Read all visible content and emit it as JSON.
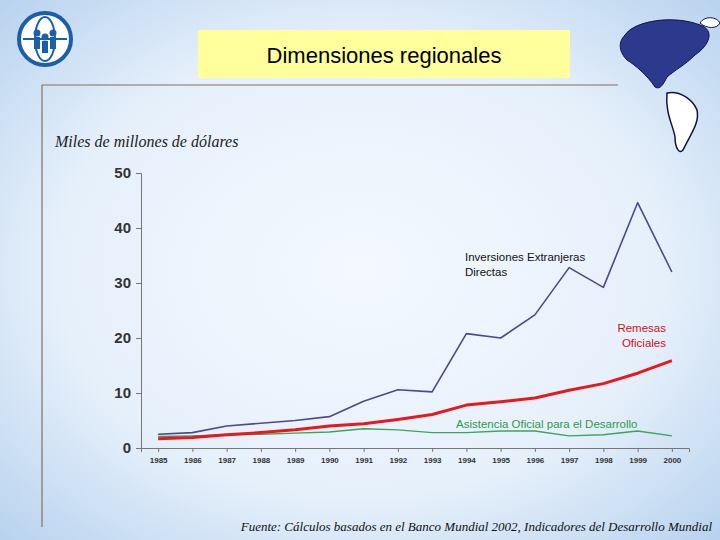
{
  "chart_data": {
    "type": "line",
    "title": "Dimensiones regionales",
    "y_label": "Miles de millones de dólares",
    "source": "Fuente: Cálculos basados en el Banco Mundial 2002, Indicadores del Desarrollo Mundial",
    "categories": [
      "1985",
      "1986",
      "1987",
      "1988",
      "1989",
      "1990",
      "1991",
      "1992",
      "1993",
      "1994",
      "1995",
      "1996",
      "1997",
      "1998",
      "1999",
      "2000"
    ],
    "series": [
      {
        "name": "Inversiones Extranjeras Directas",
        "color": "#4a4a8c",
        "values": [
          2.5,
          2.8,
          4.0,
          4.5,
          5.0,
          5.7,
          8.5,
          10.6,
          10.2,
          20.8,
          20.0,
          24.2,
          32.8,
          29.2,
          44.6,
          32.0
        ]
      },
      {
        "name": "Remesas Oficiales",
        "color": "#e8191c",
        "values": [
          1.7,
          1.9,
          2.4,
          2.8,
          3.3,
          4.0,
          4.4,
          5.2,
          6.1,
          7.8,
          8.4,
          9.1,
          10.5,
          11.7,
          13.6,
          15.9
        ]
      },
      {
        "name": "Asistencia Oficial para el Desarrollo",
        "color": "#3aa65a",
        "values": [
          2.1,
          2.2,
          2.4,
          2.5,
          2.7,
          2.9,
          3.5,
          3.3,
          2.8,
          2.8,
          3.1,
          3.1,
          2.2,
          2.4,
          3.1,
          2.2
        ]
      }
    ],
    "ylim": [
      0,
      50
    ],
    "yticks": [
      0,
      10,
      20,
      30,
      40,
      50
    ],
    "grid": false
  }
}
